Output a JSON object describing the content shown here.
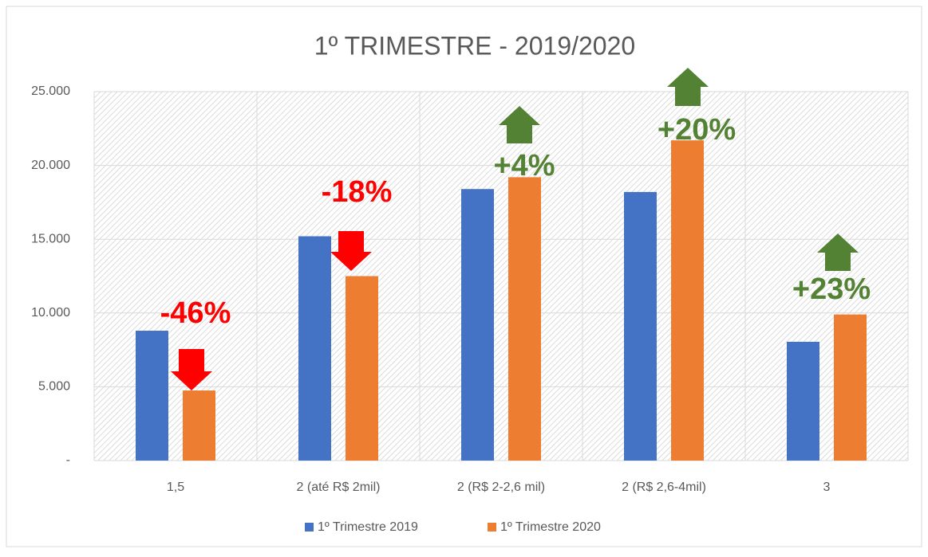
{
  "chart_data": {
    "type": "bar",
    "title": "1º TRIMESTRE - 2019/2020",
    "categories": [
      "1,5",
      "2 (até R$ 2mil)",
      "2 (R$ 2-2,6 mil)",
      "2 (R$ 2,6-4mil)",
      "3"
    ],
    "series": [
      {
        "name": "1º Trimestre 2019",
        "color": "#4472c4",
        "values": [
          8800,
          15200,
          18400,
          18200,
          8050
        ]
      },
      {
        "name": "1º Trimestre 2020",
        "color": "#ed7d31",
        "values": [
          4750,
          12500,
          19200,
          21700,
          9900
        ]
      }
    ],
    "ylim": [
      0,
      25000
    ],
    "yticks": [
      {
        "value": 0,
        "label": "-"
      },
      {
        "value": 5000,
        "label": "5.000"
      },
      {
        "value": 10000,
        "label": "10.000"
      },
      {
        "value": 15000,
        "label": "15.000"
      },
      {
        "value": 20000,
        "label": "20.000"
      },
      {
        "value": 25000,
        "label": "25.000"
      }
    ],
    "grid": true,
    "legend": "bottom",
    "annotations": [
      {
        "text": "-46%",
        "color": "#ff0000"
      },
      {
        "text": "-18%",
        "color": "#ff0000"
      },
      {
        "text": "+4%",
        "color": "#548235"
      },
      {
        "text": "+20%",
        "color": "#548235"
      },
      {
        "text": "+23%",
        "color": "#548235"
      }
    ]
  }
}
